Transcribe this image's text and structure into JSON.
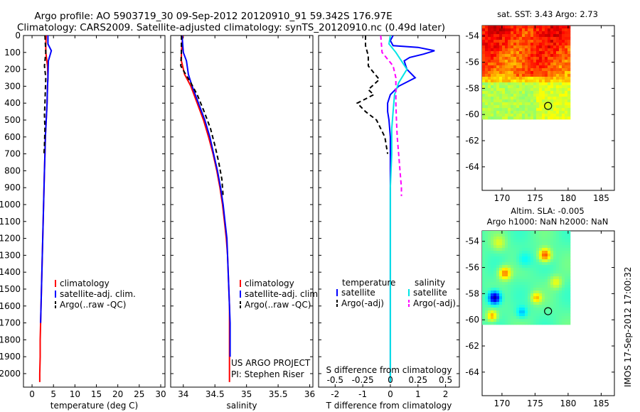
{
  "title_line1": "Argo profile: AO 5903719_30 09-Sep-2012 20120910_91 59.342S 176.97E",
  "title_line2": "Climatology: CARS2009. Satellite-adjusted climatology: synTS_20120910.nc (0.49d later)",
  "side_stamp": "IMOS 17-Sep-2012 17:00:32",
  "colors": {
    "climatology": "#ff0000",
    "satellite": "#0000ff",
    "argo": "#000000",
    "sat_salinity": "#00e5e5",
    "argo_adj_salinity": "#ff00ff"
  },
  "chart_data": [
    {
      "id": "temperature",
      "type": "line",
      "xlabel": "temperature (deg C)",
      "xlim": [
        -2,
        31
      ],
      "xticks": [
        0,
        5,
        10,
        15,
        20,
        25,
        30
      ],
      "ylim": [
        0,
        2080
      ],
      "yticks": [
        0,
        100,
        200,
        300,
        400,
        500,
        600,
        700,
        800,
        900,
        1000,
        1100,
        1200,
        1300,
        1400,
        1500,
        1600,
        1700,
        1800,
        1900,
        2000
      ],
      "y_reversed": true,
      "legend": [
        "climatology",
        "satellite-adj. clim.",
        "Argo(..raw -QC)"
      ],
      "series": [
        {
          "name": "climatology",
          "style": "solid",
          "color": "#ff0000",
          "x": [
            3.3,
            3.2,
            3.2,
            3.6,
            3.7,
            3.6,
            3.5,
            3.3,
            3.1,
            3.0,
            2.9,
            2.8,
            2.7,
            2.6,
            2.5,
            2.4,
            2.3,
            2.2,
            2.1,
            2.0,
            1.9,
            1.9,
            1.8,
            1.8
          ],
          "y": [
            0,
            50,
            100,
            180,
            250,
            300,
            400,
            500,
            600,
            700,
            800,
            900,
            1000,
            1100,
            1200,
            1300,
            1400,
            1500,
            1600,
            1700,
            1800,
            1900,
            2000,
            2050
          ]
        },
        {
          "name": "satellite-adj. clim.",
          "style": "solid",
          "color": "#0000ff",
          "x": [
            3.7,
            3.7,
            4.5,
            3.8,
            3.7,
            3.6,
            3.5,
            3.3,
            3.1,
            3.0,
            2.9,
            2.8,
            2.7,
            2.6,
            2.5,
            2.4,
            2.3,
            2.2,
            2.1,
            2.0
          ],
          "y": [
            0,
            50,
            90,
            150,
            250,
            300,
            400,
            500,
            600,
            700,
            800,
            900,
            1000,
            1100,
            1200,
            1300,
            1400,
            1500,
            1600,
            1700
          ]
        },
        {
          "name": "Argo(..raw -QC)",
          "style": "dashed",
          "color": "#000000",
          "x": [
            3.0,
            3.1,
            3.2,
            2.9,
            3.2,
            3.1,
            3.0,
            2.9,
            3.0,
            2.9,
            2.8
          ],
          "y": [
            0,
            50,
            100,
            180,
            250,
            320,
            400,
            470,
            550,
            650,
            700
          ]
        }
      ],
      "annotations": []
    },
    {
      "id": "salinity",
      "type": "line",
      "xlabel": "salinity",
      "xlim": [
        33.8,
        36.05
      ],
      "xticks": [
        34,
        34.5,
        35,
        35.5,
        36
      ],
      "xtick_labels": [
        "34",
        "34.5",
        "35",
        "35.5",
        "36"
      ],
      "ylim": [
        0,
        2080
      ],
      "y_reversed": true,
      "legend": [
        "climatology",
        "satellite-adj. clim.",
        "Argo(..raw -QC)"
      ],
      "series": [
        {
          "name": "climatology",
          "style": "solid",
          "color": "#ff0000",
          "x": [
            33.99,
            33.98,
            33.97,
            33.97,
            34.02,
            34.12,
            34.22,
            34.32,
            34.4,
            34.47,
            34.53,
            34.58,
            34.62,
            34.65,
            34.68,
            34.7,
            34.71,
            34.72,
            34.73,
            34.73,
            34.73,
            34.73
          ],
          "y": [
            0,
            50,
            100,
            150,
            230,
            300,
            400,
            500,
            600,
            700,
            800,
            900,
            1000,
            1100,
            1200,
            1300,
            1400,
            1500,
            1600,
            1700,
            1800,
            2050
          ]
        },
        {
          "name": "satellite-adj. clim.",
          "style": "solid",
          "color": "#0000ff",
          "x": [
            33.98,
            33.99,
            34.0,
            34.05,
            34.08,
            34.14,
            34.24,
            34.34,
            34.42,
            34.48,
            34.54,
            34.59,
            34.63,
            34.66,
            34.69,
            34.7,
            34.71,
            34.72,
            34.73,
            34.74,
            34.74
          ],
          "y": [
            0,
            50,
            100,
            150,
            230,
            300,
            400,
            500,
            600,
            700,
            800,
            900,
            1000,
            1100,
            1200,
            1300,
            1400,
            1500,
            1600,
            1700,
            1900
          ]
        },
        {
          "name": "Argo(..raw -QC)",
          "style": "dashed",
          "color": "#000000",
          "x": [
            33.97,
            33.97,
            33.96,
            33.99,
            34.12,
            34.22,
            34.33,
            34.43,
            34.5,
            34.56,
            34.61,
            34.63
          ],
          "y": [
            0,
            100,
            180,
            200,
            280,
            350,
            450,
            550,
            650,
            750,
            850,
            950
          ]
        }
      ],
      "annotations": [
        "US ARGO PROJECT",
        "PI: Stephen Riser"
      ]
    },
    {
      "id": "difference",
      "type": "line",
      "xlabel": "T difference from climatology",
      "xlabel_top": "S difference from climatology",
      "xlim": [
        -2.6,
        2.5
      ],
      "xticks": [
        -2,
        -1,
        0,
        1,
        2
      ],
      "xticks_secondary_labels": [
        "-0.5",
        "-0.25",
        "0",
        "0.25",
        "0.5"
      ],
      "xticks_secondary_positions_T": [
        -2,
        -1,
        0,
        1,
        2
      ],
      "ylim": [
        0,
        2080
      ],
      "y_reversed": true,
      "legend_titles": [
        "temperature",
        "salinity"
      ],
      "legend": [
        "satellite",
        "Argo(-adj)",
        "satellite",
        "Argo(-adj)"
      ],
      "series": [
        {
          "name": "T satellite",
          "style": "solid",
          "color": "#0000ff",
          "x": [
            0.1,
            0.0,
            0.1,
            1.0,
            1.6,
            1.2,
            0.7,
            0.5,
            0.6,
            0.9,
            0.3,
            0.0,
            -0.1,
            -0.1,
            -0.05,
            0.0,
            0.0,
            0.0,
            0.0,
            0.0,
            0.0
          ],
          "y": [
            0,
            30,
            60,
            70,
            90,
            110,
            130,
            150,
            200,
            250,
            300,
            350,
            400,
            450,
            500,
            600,
            800,
            1000,
            1200,
            1500,
            2050
          ]
        },
        {
          "name": "T Argo(-adj)",
          "style": "dashed",
          "color": "#000000",
          "x": [
            -0.9,
            -0.9,
            -0.8,
            -0.8,
            -0.6,
            -0.4,
            -0.8,
            -0.6,
            -1.2,
            -0.9,
            -0.5,
            -0.2,
            -0.1
          ],
          "y": [
            0,
            60,
            120,
            180,
            220,
            260,
            320,
            350,
            400,
            450,
            500,
            600,
            700
          ]
        },
        {
          "name": "S satellite",
          "style": "solid",
          "color": "#00e5e5",
          "x": [
            0.0,
            -0.05,
            0.2,
            0.4,
            0.6,
            0.3,
            0.15,
            0.1,
            0.05,
            0.05,
            0.0,
            0.0,
            0.0,
            0.0,
            0.0,
            0.0
          ],
          "y": [
            0,
            50,
            100,
            150,
            200,
            280,
            350,
            450,
            550,
            700,
            900,
            1100,
            1300,
            1600,
            1900,
            2050
          ]
        },
        {
          "name": "S Argo(-adj)",
          "style": "dashed",
          "color": "#ff00ff",
          "x": [
            -0.35,
            -0.3,
            0.1,
            0.2,
            0.2,
            0.22,
            0.25,
            0.3,
            0.35,
            0.4,
            0.4
          ],
          "y": [
            0,
            100,
            180,
            250,
            400,
            500,
            600,
            700,
            800,
            900,
            950
          ]
        }
      ],
      "annotations": []
    },
    {
      "id": "sst-map",
      "type": "heatmap",
      "title": "sat. SST: 3.43  Argo: 2.73",
      "xlim": [
        167,
        187
      ],
      "ylim": [
        -65.8,
        -53.2
      ],
      "xticks": [
        170,
        175,
        180,
        185
      ],
      "yticks": [
        -54,
        -56,
        -58,
        -60,
        -62,
        -64
      ],
      "data_extent": {
        "lon": [
          167,
          180.3
        ],
        "lat": [
          -60.3,
          -53.2
        ]
      },
      "palette": "jet",
      "float_position": {
        "lon": 176.97,
        "lat": -59.342
      }
    },
    {
      "id": "sla-map",
      "type": "heatmap",
      "title_line1": "Altim. SLA: -0.005",
      "title_line2": "Argo h1000: NaN h2000: NaN",
      "xlim": [
        167,
        187
      ],
      "ylim": [
        -65.8,
        -53.2
      ],
      "xticks": [
        170,
        175,
        180,
        185
      ],
      "yticks": [
        -54,
        -56,
        -58,
        -60,
        -62,
        -64
      ],
      "data_extent": {
        "lon": [
          167,
          180.3
        ],
        "lat": [
          -60.3,
          -53.2
        ]
      },
      "palette": "jet",
      "float_position": {
        "lon": 176.97,
        "lat": -59.342
      }
    }
  ]
}
